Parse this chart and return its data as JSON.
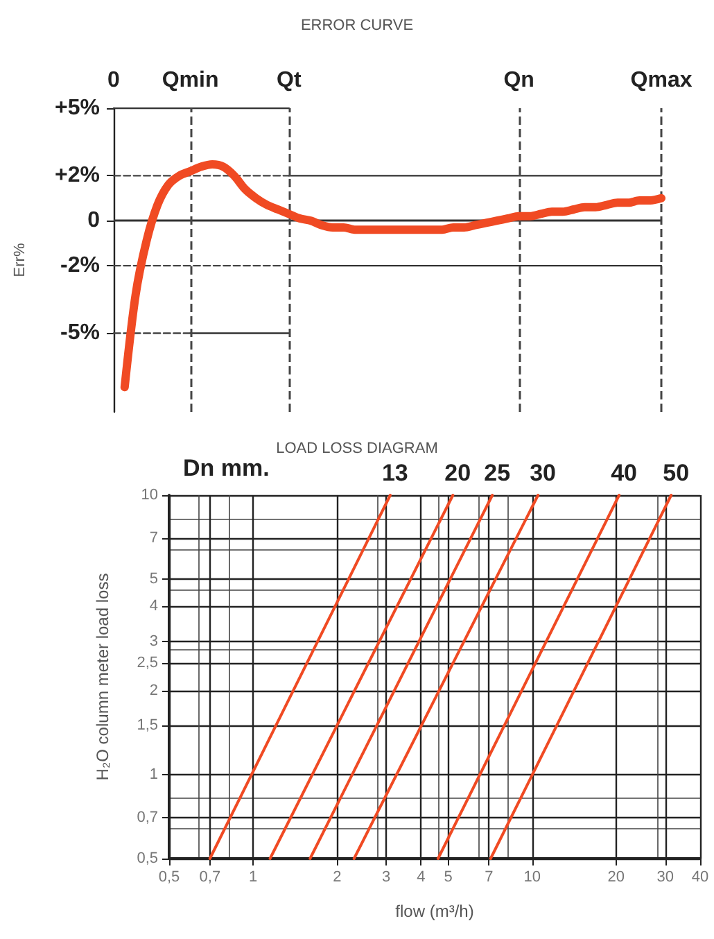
{
  "chart_data": [
    {
      "type": "line",
      "title": "ERROR CURVE",
      "ylabel": "Err%",
      "ylim": [
        -8.5,
        5
      ],
      "categories": [
        "0",
        null,
        null,
        null,
        null,
        null,
        null,
        "Qmin",
        null,
        null,
        null,
        null,
        null,
        null,
        null,
        null,
        "Qt",
        null,
        null,
        null,
        null,
        null,
        null,
        null,
        null,
        null,
        null,
        null,
        null,
        null,
        null,
        null,
        null,
        null,
        null,
        null,
        null,
        "Qn",
        null,
        null,
        null,
        null,
        null,
        null,
        null,
        null,
        null,
        null,
        null,
        null,
        "Qmax"
      ],
      "yticks": [
        {
          "value": 5,
          "label": "+5%"
        },
        {
          "value": 2,
          "label": "+2%"
        },
        0,
        {
          "value": -2,
          "label": "-2%"
        },
        {
          "value": -5,
          "label": "-5%"
        }
      ],
      "grid": false,
      "legend": false,
      "marker": "none",
      "ref_lines": [
        {
          "axis": "y",
          "value": 0,
          "color": "#333333",
          "line_style": "solid"
        },
        {
          "axis": "x",
          "value": "Qmin",
          "color": "#444444",
          "line_style": "dashed"
        },
        {
          "axis": "x",
          "value": "Qt",
          "color": "#444444",
          "line_style": "dashed"
        },
        {
          "axis": "x",
          "value": "Qn",
          "color": "#444444",
          "line_style": "dashed"
        },
        {
          "axis": "x",
          "value": "Qmax",
          "color": "#444444",
          "line_style": "dashed"
        }
      ],
      "series": [
        {
          "color": "#333333",
          "line_style": "solid",
          "values": [
            5,
            5,
            5,
            5,
            5,
            5,
            5,
            5,
            5,
            5,
            5,
            5,
            5,
            5,
            5,
            5,
            5,
            null,
            null,
            null,
            null,
            null,
            null,
            null,
            null,
            null,
            null,
            null,
            null,
            null,
            null,
            null,
            null,
            null,
            null,
            null,
            null,
            null,
            null,
            null,
            null,
            null,
            null,
            null,
            null,
            null,
            null,
            null,
            null,
            null,
            null
          ]
        },
        {
          "color": "#333333",
          "line_style": "solid",
          "values": [
            null,
            null,
            null,
            null,
            null,
            null,
            null,
            null,
            null,
            null,
            null,
            null,
            null,
            null,
            null,
            null,
            2,
            2,
            2,
            2,
            2,
            2,
            2,
            2,
            2,
            2,
            2,
            2,
            2,
            2,
            2,
            2,
            2,
            2,
            2,
            2,
            2,
            2,
            2,
            2,
            2,
            2,
            2,
            2,
            2,
            2,
            2,
            2,
            2,
            2,
            2
          ]
        },
        {
          "color": "#333333",
          "line_style": "solid",
          "values": [
            null,
            null,
            null,
            null,
            null,
            null,
            null,
            null,
            null,
            null,
            null,
            null,
            null,
            null,
            null,
            null,
            -2,
            -2,
            -2,
            -2,
            -2,
            -2,
            -2,
            -2,
            -2,
            -2,
            -2,
            -2,
            -2,
            -2,
            -2,
            -2,
            -2,
            -2,
            -2,
            -2,
            -2,
            -2,
            -2,
            -2,
            -2,
            -2,
            -2,
            -2,
            -2,
            -2,
            -2,
            -2,
            -2,
            -2,
            -2
          ]
        },
        {
          "color": "#333333",
          "line_style": "solid",
          "values": [
            null,
            null,
            null,
            null,
            null,
            null,
            null,
            -5,
            -5,
            -5,
            -5,
            -5,
            -5,
            -5,
            -5,
            -5,
            -5,
            null,
            null,
            null,
            null,
            null,
            null,
            null,
            null,
            null,
            null,
            null,
            null,
            null,
            null,
            null,
            null,
            null,
            null,
            null,
            null,
            null,
            null,
            null,
            null,
            null,
            null,
            null,
            null,
            null,
            null,
            null,
            null,
            null,
            null
          ]
        },
        {
          "color": "#444444",
          "line_style": "dashed",
          "values": [
            2,
            2,
            2,
            2,
            2,
            2,
            2,
            2,
            2,
            2,
            2,
            2,
            2,
            2,
            2,
            2,
            2,
            null,
            null,
            null,
            null,
            null,
            null,
            null,
            null,
            null,
            null,
            null,
            null,
            null,
            null,
            null,
            null,
            null,
            null,
            null,
            null,
            null,
            null,
            null,
            null,
            null,
            null,
            null,
            null,
            null,
            null,
            null,
            null,
            null,
            null
          ]
        },
        {
          "color": "#444444",
          "line_style": "dashed",
          "values": [
            -2,
            -2,
            -2,
            -2,
            -2,
            -2,
            -2,
            -2,
            -2,
            -2,
            -2,
            -2,
            -2,
            -2,
            -2,
            -2,
            -2,
            null,
            null,
            null,
            null,
            null,
            null,
            null,
            null,
            null,
            null,
            null,
            null,
            null,
            null,
            null,
            null,
            null,
            null,
            null,
            null,
            null,
            null,
            null,
            null,
            null,
            null,
            null,
            null,
            null,
            null,
            null,
            null,
            null,
            null
          ]
        },
        {
          "color": "#444444",
          "line_style": "dashed",
          "values": [
            -5,
            -5,
            -5,
            -5,
            -5,
            -5,
            -5,
            -5,
            null,
            null,
            null,
            null,
            null,
            null,
            null,
            null,
            null,
            null,
            null,
            null,
            null,
            null,
            null,
            null,
            null,
            null,
            null,
            null,
            null,
            null,
            null,
            null,
            null,
            null,
            null,
            null,
            null,
            null,
            null,
            null,
            null,
            null,
            null,
            null,
            null,
            null,
            null,
            null,
            null,
            null,
            null
          ]
        },
        {
          "color": "#f04a23",
          "line_style": "solid",
          "values": [
            null,
            -7.4,
            -3.3,
            -0.9,
            0.7,
            1.6,
            2.0,
            2.2,
            2.4,
            2.5,
            2.4,
            2.0,
            1.4,
            1.0,
            0.7,
            0.5,
            0.3,
            0.1,
            0,
            -0.2,
            -0.3,
            -0.3,
            -0.4,
            -0.4,
            -0.4,
            -0.4,
            -0.4,
            -0.4,
            -0.4,
            -0.4,
            -0.4,
            -0.3,
            -0.3,
            -0.2,
            -0.1,
            0,
            0.1,
            0.2,
            0.2,
            0.3,
            0.4,
            0.4,
            0.5,
            0.6,
            0.6,
            0.7,
            0.8,
            0.8,
            0.9,
            0.9,
            1.0
          ]
        }
      ]
    },
    {
      "type": "line",
      "title": "LOAD LOSS DIAGRAM",
      "xlabel": "flow (m³/h)",
      "ylabel": "H₂O column meter load loss",
      "log": "xy",
      "xlim": [
        0.5,
        40
      ],
      "ylim": [
        0.5,
        10
      ],
      "xticks": [
        {
          "value": 0.5,
          "label": "0,5"
        },
        {
          "value": 0.7,
          "label": "0,7"
        },
        1,
        2,
        3,
        4,
        5,
        7,
        10,
        20,
        30,
        40
      ],
      "yticks": [
        {
          "value": 0.5,
          "label": "0,5"
        },
        {
          "value": 0.7,
          "label": "0,7"
        },
        1,
        {
          "value": 1.5,
          "label": "1,5"
        },
        2,
        {
          "value": 2.5,
          "label": "2,5"
        },
        3,
        4,
        5,
        7,
        10
      ],
      "grid": true,
      "legend": false,
      "marker": "none",
      "annotations": [
        "Dn mm."
      ],
      "series": [
        {
          "name": "13",
          "color": "#f04a23",
          "x": [
            0.7,
            3.1
          ],
          "values": [
            0.5,
            10
          ]
        },
        {
          "name": "20",
          "color": "#f04a23",
          "x": [
            1.15,
            5.2
          ],
          "values": [
            0.5,
            10
          ]
        },
        {
          "name": "25",
          "color": "#f04a23",
          "x": [
            1.6,
            7.2
          ],
          "values": [
            0.5,
            10
          ]
        },
        {
          "name": "30",
          "color": "#f04a23",
          "x": [
            2.3,
            10.5
          ],
          "values": [
            0.5,
            10
          ]
        },
        {
          "name": "40",
          "color": "#f04a23",
          "x": [
            4.6,
            20.5
          ],
          "values": [
            0.5,
            10
          ]
        },
        {
          "name": "50",
          "color": "#f04a23",
          "x": [
            7.1,
            31.5
          ],
          "values": [
            0.5,
            10
          ]
        }
      ]
    }
  ]
}
